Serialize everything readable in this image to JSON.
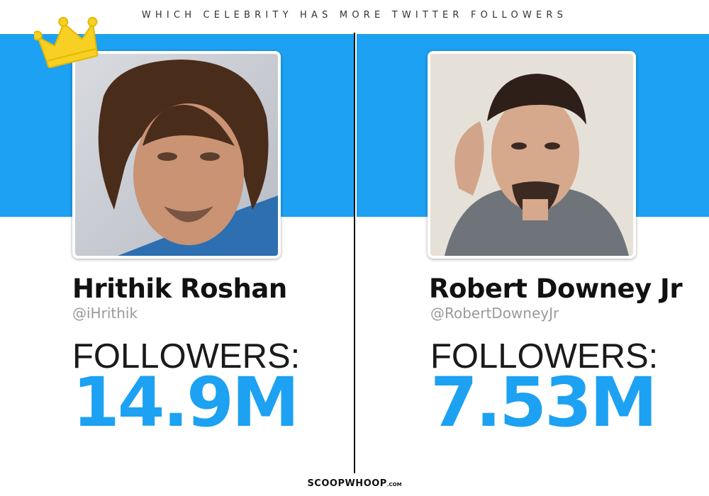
{
  "title": "WHICH CELEBRITY HAS MORE TWITTER FOLLOWERS",
  "colors": {
    "accent": "#1da1f2",
    "crown": "#f7d023",
    "text": "#111111",
    "handle": "#9a9a9a"
  },
  "left": {
    "name": "Hrithik Roshan",
    "handle": "@iHrithik",
    "followers_label": "FOLLOWERS:",
    "followers": "14.9M",
    "winner": true,
    "photo_icon": "portrait-photo"
  },
  "right": {
    "name": "Robert Downey Jr",
    "handle": "@RobertDowneyJr",
    "followers_label": "FOLLOWERS:",
    "followers": "7.53M",
    "winner": false,
    "photo_icon": "portrait-photo"
  },
  "footer": {
    "brand": "SCOOPWHOOP",
    "tld": ".COM"
  }
}
